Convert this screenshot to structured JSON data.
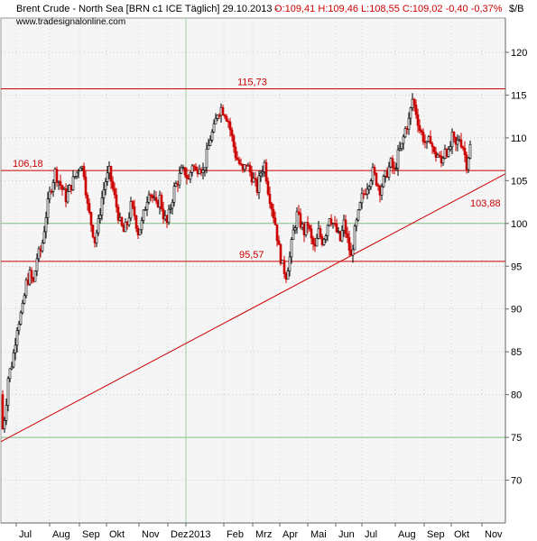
{
  "header": {
    "title": "Brent Crude - North Sea [BRN c1 ICE  Täglich] 29.10.2013 -",
    "quote": "O:109,41 H:109,46 L:108,55 C:109,02 -0,40 -0,37%",
    "source": "www.tradesignalonline.com",
    "unit": "$/B"
  },
  "chart_data": {
    "type": "candlestick",
    "instrument": "Brent Crude - North Sea",
    "ylim": [
      65,
      124
    ],
    "y_ticks": [
      70,
      75,
      80,
      85,
      90,
      95,
      100,
      105,
      110,
      115,
      120
    ],
    "y_tick_labels": [
      "70",
      "75",
      "80",
      "85",
      "90",
      "95",
      "100",
      "105",
      "110",
      "115",
      "120"
    ],
    "x_ticks": [
      "Jul",
      "Aug",
      "Sep",
      "Okt",
      "Nov",
      "Dez",
      "2013",
      "Feb",
      "Mrz",
      "Apr",
      "Mai",
      "Jun",
      "Jul",
      "Aug",
      "Sep",
      "Okt",
      "Nov"
    ],
    "grid": true,
    "close_path": [
      [
        0,
        80
      ],
      [
        2,
        76
      ],
      [
        5,
        78
      ],
      [
        8,
        82
      ],
      [
        13,
        84
      ],
      [
        18,
        88
      ],
      [
        24,
        90
      ],
      [
        28,
        93
      ],
      [
        32,
        94
      ],
      [
        36,
        93
      ],
      [
        40,
        96
      ],
      [
        45,
        97
      ],
      [
        50,
        101
      ],
      [
        55,
        104
      ],
      [
        60,
        106
      ],
      [
        64,
        105
      ],
      [
        68,
        104
      ],
      [
        72,
        103
      ],
      [
        76,
        104
      ],
      [
        80,
        105
      ],
      [
        84,
        106
      ],
      [
        88,
        107
      ],
      [
        92,
        106
      ],
      [
        96,
        102
      ],
      [
        100,
        100
      ],
      [
        104,
        98
      ],
      [
        108,
        100
      ],
      [
        112,
        103
      ],
      [
        116,
        105
      ],
      [
        120,
        106
      ],
      [
        124,
        104
      ],
      [
        128,
        102
      ],
      [
        132,
        100
      ],
      [
        136,
        99
      ],
      [
        140,
        100
      ],
      [
        144,
        102
      ],
      [
        148,
        101
      ],
      [
        152,
        99
      ],
      [
        156,
        100
      ],
      [
        160,
        102
      ],
      [
        164,
        104
      ],
      [
        168,
        103
      ],
      [
        172,
        102
      ],
      [
        176,
        103
      ],
      [
        180,
        101
      ],
      [
        184,
        100
      ],
      [
        188,
        102
      ],
      [
        192,
        104
      ],
      [
        196,
        105
      ],
      [
        200,
        106
      ],
      [
        204,
        106
      ],
      [
        208,
        105
      ],
      [
        212,
        107
      ],
      [
        216,
        106
      ],
      [
        220,
        107
      ],
      [
        224,
        106
      ],
      [
        228,
        108
      ],
      [
        232,
        110
      ],
      [
        236,
        111
      ],
      [
        240,
        113
      ],
      [
        244,
        113.5
      ],
      [
        248,
        113
      ],
      [
        252,
        112
      ],
      [
        256,
        110
      ],
      [
        260,
        108
      ],
      [
        264,
        107
      ],
      [
        268,
        106
      ],
      [
        272,
        107
      ],
      [
        276,
        106
      ],
      [
        280,
        105
      ],
      [
        284,
        104
      ],
      [
        288,
        106
      ],
      [
        292,
        107
      ],
      [
        296,
        104
      ],
      [
        300,
        102
      ],
      [
        304,
        100
      ],
      [
        308,
        97
      ],
      [
        312,
        95
      ],
      [
        316,
        94
      ],
      [
        320,
        96
      ],
      [
        324,
        99
      ],
      [
        328,
        101
      ],
      [
        332,
        100
      ],
      [
        336,
        99
      ],
      [
        340,
        100
      ],
      [
        344,
        98
      ],
      [
        348,
        97
      ],
      [
        352,
        99
      ],
      [
        356,
        98
      ],
      [
        360,
        99
      ],
      [
        364,
        101
      ],
      [
        368,
        100
      ],
      [
        372,
        99
      ],
      [
        376,
        98
      ],
      [
        380,
        100
      ],
      [
        384,
        98
      ],
      [
        388,
        96
      ],
      [
        392,
        99
      ],
      [
        396,
        101
      ],
      [
        400,
        103
      ],
      [
        404,
        104
      ],
      [
        408,
        105
      ],
      [
        412,
        106
      ],
      [
        416,
        105
      ],
      [
        420,
        104
      ],
      [
        424,
        105
      ],
      [
        428,
        106
      ],
      [
        432,
        107
      ],
      [
        436,
        106
      ],
      [
        440,
        108
      ],
      [
        444,
        109
      ],
      [
        448,
        111
      ],
      [
        452,
        112
      ],
      [
        456,
        114.5
      ],
      [
        460,
        113
      ],
      [
        464,
        111
      ],
      [
        468,
        110
      ],
      [
        472,
        109
      ],
      [
        476,
        110
      ],
      [
        480,
        108
      ],
      [
        484,
        108
      ],
      [
        488,
        107
      ],
      [
        492,
        109
      ],
      [
        496,
        108
      ],
      [
        500,
        110
      ],
      [
        504,
        109
      ],
      [
        508,
        110
      ],
      [
        512,
        109
      ],
      [
        516,
        107
      ],
      [
        520,
        109
      ]
    ],
    "support_levels": [
      {
        "value": 115.73,
        "label": "115,73",
        "label_pos": "top-center"
      },
      {
        "value": 106.18,
        "label": "106,18",
        "label_pos": "top-left"
      },
      {
        "value": 95.57,
        "label": "95,57",
        "label_pos": "top-center"
      }
    ],
    "trendline": {
      "from": {
        "date": "Jul 2012",
        "value": 74.5
      },
      "to": {
        "date": "Nov 2013",
        "value": 105.8
      },
      "label": "103,88"
    },
    "colors": {
      "candle_up": "#000000",
      "candle_down": "#cc0000",
      "level_line": "#cc0000",
      "trendline": "#cc0000",
      "grid": "#7fbf7f",
      "plot_bg": "#f5f5f5"
    }
  }
}
